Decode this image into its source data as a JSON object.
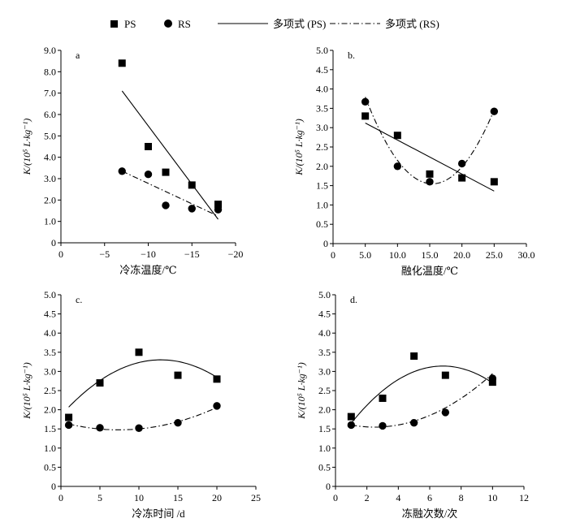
{
  "legend": {
    "items": [
      {
        "label": "PS",
        "marker": "square"
      },
      {
        "label": "RS",
        "marker": "circle"
      },
      {
        "label": "多项式 (PS)",
        "line": "solid"
      },
      {
        "label": "多项式 (RS)",
        "line": "dashdot"
      }
    ]
  },
  "colors": {
    "ink": "#000000",
    "background": "#ffffff"
  },
  "chart_data": [
    {
      "type": "scatter",
      "panel": "a",
      "xlabel": "冷冻温度/℃",
      "ylabel": "K/(10⁵ L·kg⁻¹)",
      "xlim": [
        0,
        -20
      ],
      "ylim": [
        0,
        9
      ],
      "xticks": [
        0,
        -5,
        -10,
        -15,
        -20
      ],
      "xtick_labels": [
        "0",
        "−5",
        "−10",
        "−15",
        "−20"
      ],
      "yticks": [
        0,
        1,
        2,
        3,
        4,
        5,
        6,
        7,
        8,
        9
      ],
      "ytick_labels": [
        "0",
        "1.0",
        "2.0",
        "3.0",
        "4.0",
        "5.0",
        "6.0",
        "7.0",
        "8.0",
        "9.0"
      ],
      "series": [
        {
          "name": "PS",
          "marker": "square",
          "x": [
            -7,
            -10,
            -12,
            -15,
            -18
          ],
          "y": [
            8.4,
            4.5,
            3.3,
            2.7,
            1.8
          ]
        },
        {
          "name": "RS",
          "marker": "circle",
          "x": [
            -7,
            -10,
            -12,
            -15,
            -18
          ],
          "y": [
            3.35,
            3.2,
            1.75,
            1.6,
            1.55
          ]
        }
      ],
      "fits": [
        {
          "name": "多项式 (PS)",
          "style": "solid",
          "x": [
            -7,
            -18
          ],
          "y": [
            7.1,
            1.1
          ]
        },
        {
          "name": "多项式 (RS)",
          "style": "dashdot",
          "x": [
            -7,
            -18
          ],
          "y": [
            3.35,
            1.25
          ]
        }
      ]
    },
    {
      "type": "scatter",
      "panel": "b.",
      "xlabel": "融化温度/℃",
      "ylabel": "K/(10⁵ L·kg⁻¹)",
      "xlim": [
        0,
        30
      ],
      "ylim": [
        0,
        5
      ],
      "xticks": [
        0,
        5,
        10,
        15,
        20,
        25,
        30
      ],
      "xtick_labels": [
        "0",
        "5.0",
        "10.0",
        "15.0",
        "20.0",
        "25.0",
        "30.0"
      ],
      "yticks": [
        0,
        0.5,
        1,
        1.5,
        2,
        2.5,
        3,
        3.5,
        4,
        4.5,
        5
      ],
      "ytick_labels": [
        "0",
        "0.5",
        "1.0",
        "1.5",
        "2.0",
        "2.5",
        "3.0",
        "3.5",
        "4.0",
        "4.5",
        "5.0"
      ],
      "series": [
        {
          "name": "PS",
          "marker": "square",
          "x": [
            5,
            10,
            15,
            20,
            25
          ],
          "y": [
            3.3,
            2.8,
            1.8,
            1.7,
            1.6
          ]
        },
        {
          "name": "RS",
          "marker": "circle",
          "x": [
            5,
            10,
            15,
            20,
            25
          ],
          "y": [
            3.67,
            2.0,
            1.6,
            2.07,
            3.42
          ]
        }
      ],
      "fits": [
        {
          "name": "多项式 (PS)",
          "style": "solid",
          "x": [
            5,
            25
          ],
          "y": [
            3.12,
            1.36
          ]
        },
        {
          "name": "多项式 (RS)",
          "style": "dashdot",
          "coef": [
            0.02074,
            -0.6389,
            6.468
          ],
          "domain": [
            5,
            25
          ]
        }
      ]
    },
    {
      "type": "scatter",
      "panel": "c.",
      "xlabel": "冷冻时间 /d",
      "ylabel": "K/(10⁵ L·kg⁻¹)",
      "xlim": [
        0,
        25
      ],
      "ylim": [
        0,
        5
      ],
      "xticks": [
        0,
        5,
        10,
        15,
        20,
        25
      ],
      "xtick_labels": [
        "0",
        "5",
        "10",
        "15",
        "20",
        "25"
      ],
      "yticks": [
        0,
        0.5,
        1,
        1.5,
        2,
        2.5,
        3,
        3.5,
        4,
        4.5,
        5
      ],
      "ytick_labels": [
        "0",
        "0.5",
        "1.0",
        "1.5",
        "2.0",
        "2.5",
        "3.0",
        "3.5",
        "4.0",
        "4.5",
        "5.0"
      ],
      "series": [
        {
          "name": "PS",
          "marker": "square",
          "x": [
            1,
            5,
            10,
            15,
            20
          ],
          "y": [
            1.8,
            2.7,
            3.5,
            2.9,
            2.8
          ]
        },
        {
          "name": "RS",
          "marker": "circle",
          "x": [
            1,
            5,
            10,
            15,
            20
          ],
          "y": [
            1.6,
            1.53,
            1.52,
            1.66,
            2.1
          ]
        }
      ],
      "fits": [
        {
          "name": "多项式 (PS)",
          "style": "solid",
          "coef": [
            -0.00884,
            0.2266,
            1.85
          ],
          "domain": [
            1,
            20
          ]
        },
        {
          "name": "多项式 (RS)",
          "style": "dashdot",
          "coef": [
            0.0037,
            -0.055,
            1.68
          ],
          "domain": [
            1,
            20
          ]
        }
      ]
    },
    {
      "type": "scatter",
      "panel": "d.",
      "xlabel": "冻融次数/次",
      "ylabel": "K/(10⁵ L·kg⁻¹)",
      "xlim": [
        0,
        12
      ],
      "ylim": [
        0,
        5
      ],
      "xticks": [
        0,
        2,
        4,
        6,
        8,
        10,
        12
      ],
      "xtick_labels": [
        "0",
        "2",
        "4",
        "6",
        "8",
        "10",
        "12"
      ],
      "yticks": [
        0,
        0.5,
        1,
        1.5,
        2,
        2.5,
        3,
        3.5,
        4,
        4.5,
        5
      ],
      "ytick_labels": [
        "0",
        "0.5",
        "1.0",
        "1.5",
        "2.0",
        "2.5",
        "3.0",
        "3.5",
        "4.0",
        "4.5",
        "5.0"
      ],
      "series": [
        {
          "name": "PS",
          "marker": "square",
          "x": [
            1,
            3,
            5,
            7,
            10
          ],
          "y": [
            1.82,
            2.3,
            3.4,
            2.9,
            2.72
          ]
        },
        {
          "name": "RS",
          "marker": "circle",
          "x": [
            1,
            3,
            5,
            7,
            10
          ],
          "y": [
            1.6,
            1.58,
            1.66,
            1.93,
            2.82
          ]
        }
      ],
      "fits": [
        {
          "name": "多项式 (PS)",
          "style": "solid",
          "coef": [
            -0.0439,
            0.6,
            1.09
          ],
          "domain": [
            1,
            10
          ]
        },
        {
          "name": "多项式 (RS)",
          "style": "dashdot",
          "coef": [
            0.0247,
            -0.123,
            1.7
          ],
          "domain": [
            1,
            10
          ]
        }
      ]
    }
  ]
}
